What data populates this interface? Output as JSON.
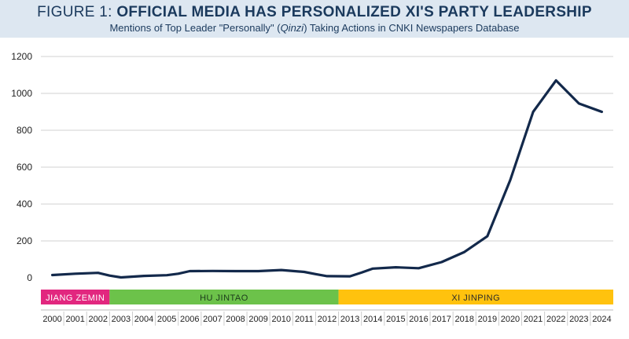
{
  "header": {
    "title_lead": "FIGURE 1: ",
    "title_main": "OFFICIAL MEDIA HAS PERSONALIZED XI'S PARTY LEADERSHIP",
    "subtitle_pre": "Mentions of Top Leader \"Personally\" (",
    "subtitle_italic": "Qinzi",
    "subtitle_post": ") Taking Actions in CNKI Newspapers Database"
  },
  "colors": {
    "header_bg": "#dde7f1",
    "title": "#1b3a5d",
    "line": "#13294b",
    "jiang": "#e2277f",
    "hu": "#6cc24a",
    "xi": "#ffc20e"
  },
  "chart_data": {
    "type": "line",
    "title": "FIGURE 1: OFFICIAL MEDIA HAS PERSONALIZED XI'S PARTY LEADERSHIP",
    "subtitle": "Mentions of Top Leader \"Personally\" (Qinzi) Taking Actions in CNKI Newspapers Database",
    "xlabel": "",
    "ylabel": "",
    "ylim": [
      0,
      1200
    ],
    "yticks": [
      0,
      200,
      400,
      600,
      800,
      1000,
      1200
    ],
    "grid": "horizontal",
    "categories": [
      "2000",
      "2001",
      "2002",
      "2003",
      "2004",
      "2005",
      "2006",
      "2007",
      "2008",
      "2009",
      "2010",
      "2011",
      "2012",
      "2013",
      "2014",
      "2015",
      "2016",
      "2017",
      "2018",
      "2019",
      "2020",
      "2021",
      "2022",
      "2023",
      "2024"
    ],
    "series": [
      {
        "name": "Mentions",
        "x": [
          2000,
          2001,
          2002,
          2002.5,
          2003,
          2004,
          2005,
          2005.5,
          2006,
          2007,
          2008,
          2009,
          2010,
          2011,
          2011.5,
          2012,
          2013,
          2013.5,
          2014,
          2015,
          2016,
          2017,
          2018,
          2019,
          2020,
          2021,
          2022,
          2023,
          2024
        ],
        "values": [
          15,
          22,
          27,
          12,
          2,
          10,
          14,
          22,
          36,
          37,
          36,
          36,
          42,
          32,
          20,
          9,
          8,
          28,
          50,
          57,
          52,
          85,
          140,
          225,
          530,
          900,
          1070,
          945,
          900
        ]
      }
    ],
    "eras": [
      {
        "label": "JIANG ZEMIN",
        "start": 2000,
        "end": 2002
      },
      {
        "label": "HU JINTAO",
        "start": 2003,
        "end": 2012
      },
      {
        "label": "XI JINPING",
        "start": 2013,
        "end": 2024
      }
    ]
  }
}
